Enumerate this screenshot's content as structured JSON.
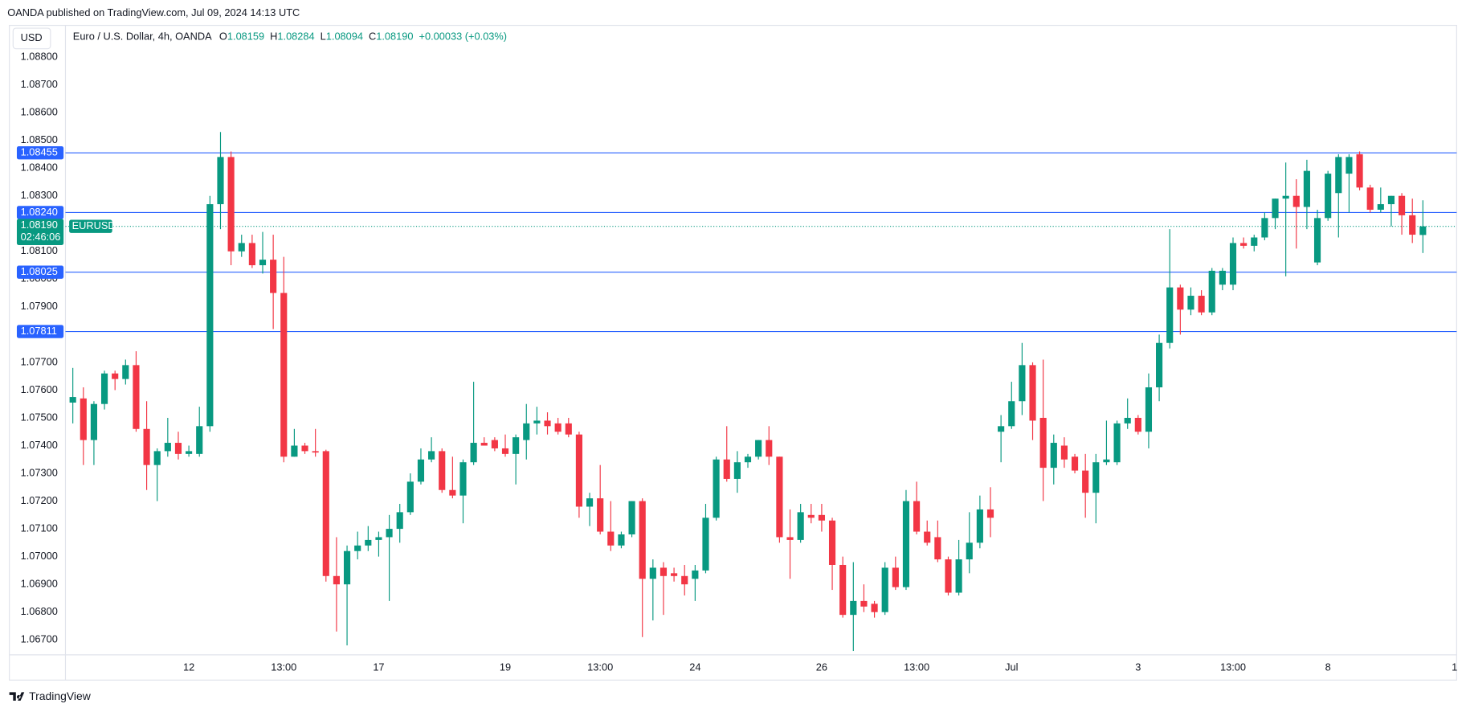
{
  "header": "OANDA published on TradingView.com, Jul 09, 2024 14:13 UTC",
  "currency": "USD",
  "footer": "TradingView",
  "chart_data": {
    "type": "candlestick",
    "title": "Euro / U.S. Dollar, 4h, OANDA",
    "ohlc_legend": [
      {
        "key": "O",
        "value": "1.08159"
      },
      {
        "key": "H",
        "value": "1.08284"
      },
      {
        "key": "L",
        "value": "1.08094"
      },
      {
        "key": "C",
        "value": "1.08190"
      }
    ],
    "change": "+0.00033 (+0.03%)",
    "up_color": "#089981",
    "down_color": "#f23645",
    "level_color": "#2962ff",
    "xlim": [
      -0.7,
      131.2
    ],
    "xticks": [
      {
        "value": 11,
        "label": "12"
      },
      {
        "value": 20,
        "label": "13:00"
      },
      {
        "value": 29,
        "label": "17"
      },
      {
        "value": 41,
        "label": "19"
      },
      {
        "value": 50,
        "label": "13:00"
      },
      {
        "value": 59,
        "label": "24"
      },
      {
        "value": 71,
        "label": "26"
      },
      {
        "value": 80,
        "label": "13:00"
      },
      {
        "value": 89,
        "label": "Jul"
      },
      {
        "value": 101,
        "label": "3"
      },
      {
        "value": 110,
        "label": "13:00"
      },
      {
        "value": 119,
        "label": "8"
      },
      {
        "value": 131,
        "label": "1"
      }
    ],
    "ylim": [
      1.06646,
      1.08911
    ],
    "yticks": [
      {
        "value": 1.088,
        "label": "1.08800"
      },
      {
        "value": 1.087,
        "label": "1.08700"
      },
      {
        "value": 1.086,
        "label": "1.08600"
      },
      {
        "value": 1.085,
        "label": "1.08500"
      },
      {
        "value": 1.084,
        "label": "1.08400"
      },
      {
        "value": 1.083,
        "label": "1.08300"
      },
      {
        "value": 1.081,
        "label": "1.08100"
      },
      {
        "value": 1.08,
        "label": "1.08000"
      },
      {
        "value": 1.079,
        "label": "1.07900"
      },
      {
        "value": 1.077,
        "label": "1.07700"
      },
      {
        "value": 1.076,
        "label": "1.07600"
      },
      {
        "value": 1.075,
        "label": "1.07500"
      },
      {
        "value": 1.074,
        "label": "1.07400"
      },
      {
        "value": 1.073,
        "label": "1.07300"
      },
      {
        "value": 1.072,
        "label": "1.07200"
      },
      {
        "value": 1.071,
        "label": "1.07100"
      },
      {
        "value": 1.07,
        "label": "1.07000"
      },
      {
        "value": 1.069,
        "label": "1.06900"
      },
      {
        "value": 1.068,
        "label": "1.06800"
      },
      {
        "value": 1.067,
        "label": "1.06700"
      }
    ],
    "levels": [
      {
        "value": 1.08455,
        "label": "1.08455"
      },
      {
        "value": 1.0824,
        "label": "1.08240"
      },
      {
        "value": 1.08025,
        "label": "1.08025"
      },
      {
        "value": 1.07811,
        "label": "1.07811"
      }
    ],
    "last_price": {
      "value": 1.0819,
      "label": "1.08190",
      "countdown": "02:46:06",
      "symbol": "EURUSD"
    },
    "open": [
      1.07555,
      1.0757,
      1.0742,
      1.0755,
      1.0766,
      1.0764,
      1.0769,
      1.0746,
      1.0733,
      1.0738,
      1.0741,
      1.0737,
      1.0737,
      1.0747,
      1.0827,
      1.0844,
      1.081,
      1.0813,
      1.0805,
      1.0807,
      1.0795,
      1.0736,
      1.074,
      1.0738,
      1.0738,
      1.0693,
      1.069,
      1.0702,
      1.0704,
      1.0706,
      1.0707,
      1.071,
      1.0716,
      1.0727,
      1.0735,
      1.0738,
      1.0724,
      1.0722,
      1.0734,
      1.0741,
      1.0742,
      1.0739,
      1.0737,
      1.0742,
      1.0748,
      1.0749,
      1.0748,
      1.0748,
      1.0744,
      1.0718,
      1.0721,
      1.0709,
      1.0704,
      1.0708,
      1.072,
      1.0692,
      1.0696,
      1.0694,
      1.0693,
      1.0692,
      1.0695,
      1.0714,
      1.0735,
      1.0728,
      1.0734,
      1.0736,
      1.0742,
      1.0736,
      1.0707,
      1.0706,
      1.0715,
      1.0715,
      1.0713,
      1.0697,
      1.0679,
      1.0684,
      1.0683,
      1.068,
      1.0696,
      1.0689,
      1.072,
      1.0709,
      1.0707,
      1.0699,
      1.0687,
      1.0699,
      1.0705,
      1.0717,
      1.0745,
      1.0747,
      1.0756,
      1.0769,
      1.075,
      1.0732,
      1.074,
      1.0736,
      1.0731,
      1.0723,
      1.0734,
      1.0734,
      1.0748,
      1.075,
      1.0745,
      1.0761,
      1.0777,
      1.0797,
      1.0789,
      1.0794,
      1.0788,
      1.0798,
      1.0798,
      1.0813,
      1.0812,
      1.0815,
      1.0822,
      1.0829,
      1.083,
      1.0826,
      1.0806,
      1.0822,
      1.0831,
      1.0838,
      1.0845,
      1.0833,
      1.0825,
      1.0827,
      1.083,
      1.0823,
      1.08159
    ],
    "high": [
      1.0768,
      1.0761,
      1.0756,
      1.0767,
      1.0767,
      1.0771,
      1.0774,
      1.0756,
      1.0739,
      1.075,
      1.0745,
      1.074,
      1.0754,
      1.083,
      1.0853,
      1.0846,
      1.0816,
      1.0816,
      1.0817,
      1.0816,
      1.0808,
      1.0746,
      1.0741,
      1.0746,
      1.07385,
      1.0707,
      1.0704,
      1.0709,
      1.0711,
      1.0709,
      1.0715,
      1.0719,
      1.073,
      1.0739,
      1.0743,
      1.0739,
      1.0736,
      1.0735,
      1.0763,
      1.0743,
      1.0743,
      1.0744,
      1.0744,
      1.0755,
      1.0754,
      1.0752,
      1.075,
      1.075,
      1.0745,
      1.0723,
      1.0733,
      1.072,
      1.0709,
      1.072,
      1.0721,
      1.0699,
      1.0698,
      1.0696,
      1.0697,
      1.0697,
      1.0719,
      1.0736,
      1.0747,
      1.0738,
      1.0737,
      1.0742,
      1.0747,
      1.0736,
      1.0717,
      1.0719,
      1.0719,
      1.0719,
      1.0714,
      1.07,
      1.0698,
      1.069,
      1.0684,
      1.0698,
      1.07,
      1.0724,
      1.0727,
      1.0713,
      1.0713,
      1.07,
      1.0706,
      1.0716,
      1.0722,
      1.0725,
      1.0751,
      1.0763,
      1.0777,
      1.077,
      1.0771,
      1.0744,
      1.0743,
      1.0737,
      1.0737,
      1.0737,
      1.0749,
      1.0749,
      1.0757,
      1.0751,
      1.0766,
      1.078,
      1.0818,
      1.0798,
      1.0797,
      1.0796,
      1.0804,
      1.0804,
      1.0815,
      1.0815,
      1.0816,
      1.0824,
      1.0829,
      1.0842,
      1.0836,
      1.0843,
      1.0825,
      1.0839,
      1.0845,
      1.0845,
      1.0846,
      1.0834,
      1.0833,
      1.083,
      1.0831,
      1.0829,
      1.08284
    ],
    "low": [
      1.0748,
      1.0733,
      1.0733,
      1.0753,
      1.076,
      1.0762,
      1.0745,
      1.0724,
      1.072,
      1.0736,
      1.0735,
      1.0736,
      1.0736,
      1.0745,
      1.0818,
      1.0805,
      1.0808,
      1.0804,
      1.0802,
      1.0782,
      1.0734,
      1.0736,
      1.0737,
      1.0736,
      1.0691,
      1.0673,
      1.0668,
      1.0699,
      1.0702,
      1.07,
      1.0684,
      1.0705,
      1.0715,
      1.0726,
      1.0734,
      1.0723,
      1.0721,
      1.0712,
      1.0733,
      1.074,
      1.0738,
      1.0736,
      1.0726,
      1.0735,
      1.0744,
      1.0744,
      1.0744,
      1.0743,
      1.0714,
      1.0711,
      1.0708,
      1.0702,
      1.0703,
      1.0707,
      1.0671,
      1.0677,
      1.0679,
      1.0691,
      1.0686,
      1.0684,
      1.0694,
      1.0713,
      1.0727,
      1.0723,
      1.0732,
      1.0735,
      1.0733,
      1.0705,
      1.0692,
      1.0705,
      1.0712,
      1.0709,
      1.0688,
      1.0678,
      1.0666,
      1.068,
      1.0678,
      1.0679,
      1.0688,
      1.0688,
      1.0708,
      1.0704,
      1.0698,
      1.0686,
      1.0686,
      1.0694,
      1.0703,
      1.0707,
      1.0734,
      1.0746,
      1.0751,
      1.0742,
      1.072,
      1.0726,
      1.0732,
      1.073,
      1.0714,
      1.0712,
      1.0733,
      1.0733,
      1.0746,
      1.0744,
      1.0739,
      1.0756,
      1.0775,
      1.078,
      1.0787,
      1.0787,
      1.0787,
      1.0796,
      1.0796,
      1.0811,
      1.081,
      1.0814,
      1.0818,
      1.0801,
      1.0811,
      1.0818,
      1.0805,
      1.0821,
      1.0815,
      1.0824,
      1.0832,
      1.0824,
      1.0824,
      1.0819,
      1.0816,
      1.0813,
      1.08094
    ],
    "close": [
      1.07575,
      1.0742,
      1.0755,
      1.0766,
      1.0764,
      1.0769,
      1.0746,
      1.0733,
      1.0738,
      1.0741,
      1.0737,
      1.0738,
      1.0747,
      1.0827,
      1.0844,
      1.081,
      1.0813,
      1.0805,
      1.0807,
      1.0795,
      1.0736,
      1.074,
      1.0738,
      1.07375,
      1.0693,
      1.069,
      1.0702,
      1.0704,
      1.0706,
      1.0707,
      1.071,
      1.0716,
      1.0727,
      1.0735,
      1.0738,
      1.0724,
      1.0722,
      1.0734,
      1.0741,
      1.074,
      1.0739,
      1.0737,
      1.0743,
      1.0748,
      1.0749,
      1.0747,
      1.0745,
      1.0744,
      1.0718,
      1.0721,
      1.0709,
      1.0704,
      1.0708,
      1.072,
      1.0692,
      1.0696,
      1.0693,
      1.0693,
      1.069,
      1.0695,
      1.0714,
      1.0735,
      1.0728,
      1.0734,
      1.0736,
      1.0742,
      1.0736,
      1.0707,
      1.0706,
      1.0716,
      1.0714,
      1.0713,
      1.0697,
      1.0679,
      1.0684,
      1.0682,
      1.068,
      1.0696,
      1.0689,
      1.072,
      1.0709,
      1.0705,
      1.0699,
      1.0687,
      1.0699,
      1.0705,
      1.0717,
      1.0714,
      1.0747,
      1.0756,
      1.0769,
      1.0749,
      1.0732,
      1.0741,
      1.0735,
      1.0731,
      1.0723,
      1.0734,
      1.0735,
      1.0748,
      1.075,
      1.0745,
      1.0761,
      1.0777,
      1.0797,
      1.0789,
      1.0794,
      1.0788,
      1.0803,
      1.0803,
      1.0813,
      1.0812,
      1.0815,
      1.0822,
      1.0829,
      1.083,
      1.0826,
      1.0839,
      1.0822,
      1.0838,
      1.0844,
      1.0844,
      1.0833,
      1.0825,
      1.0827,
      1.083,
      1.0823,
      1.0816,
      1.0819
    ]
  }
}
